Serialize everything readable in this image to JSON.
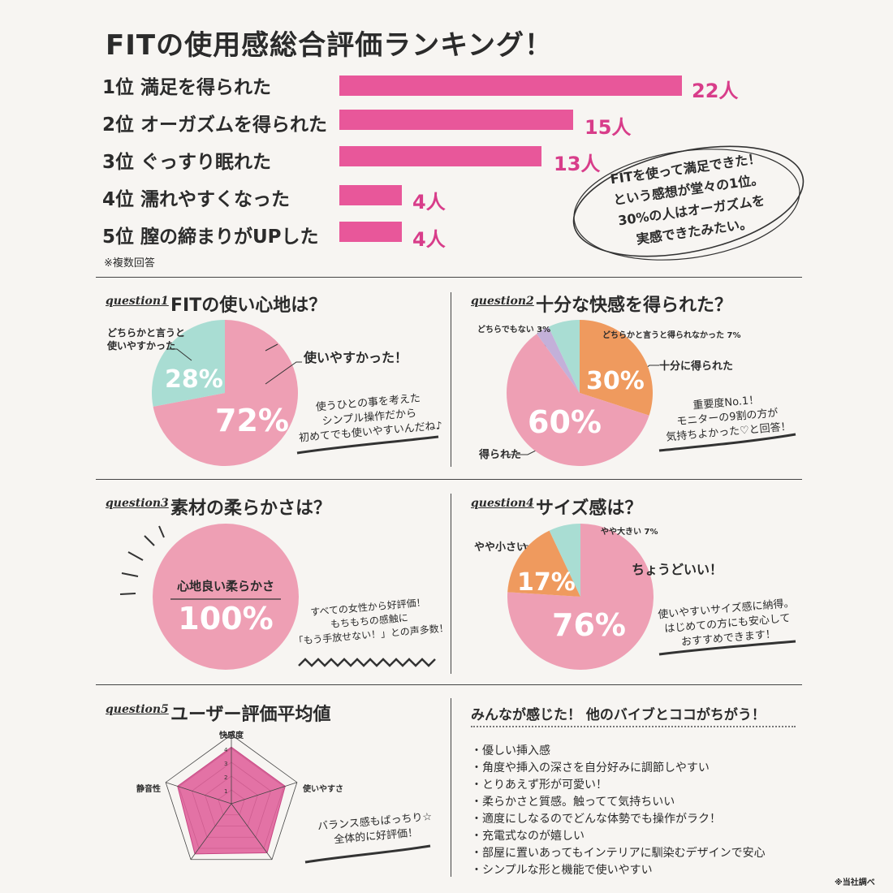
{
  "title": "FITの使用感総合評価ランキング！",
  "ranking": {
    "footnote": "※複数回答",
    "items": [
      {
        "label": "1位 満足を得られた",
        "count": "22人"
      },
      {
        "label": "2位 オーガズムを得られた",
        "count": "15人"
      },
      {
        "label": "3位 ぐっすり眠れた",
        "count": "13人"
      },
      {
        "label": "4位 濡れやすくなった",
        "count": "4人"
      },
      {
        "label": "5位 膣の締まりがUPした",
        "count": "4人"
      }
    ],
    "bubble": [
      "FITを使って満足できた！",
      "という感想が堂々の1位。",
      "30%の人はオーガズムを",
      "実感できたみたい。"
    ]
  },
  "q1": {
    "tag": "question1",
    "title": "FITの使い心地は？",
    "label_major": "使いやすかった！",
    "label_minor_1": "どちらかと言うと",
    "label_minor_2": "使いやすかった",
    "pct_major": "72%",
    "pct_minor": "28%",
    "comment": [
      "使うひとの事を考えた",
      "シンプル操作だから",
      "初めてでも使いやすいんだね♪"
    ]
  },
  "q2": {
    "tag": "question2",
    "title": "十分な快感を得られた？",
    "label_a": "どちらかと言うと得られなかった 7%",
    "label_b": "どちらでもない 3%",
    "label_c": "十分に得られた",
    "label_d": "得られた",
    "pct_c": "30%",
    "pct_d": "60%",
    "comment": [
      "重要度No.1！",
      "モニターの9割の方が",
      "気持ちよかった♡と回答！"
    ]
  },
  "q3": {
    "tag": "question3",
    "title": "素材の柔らかさは？",
    "label": "心地良い柔らかさ",
    "pct": "100%",
    "comment": [
      "すべての女性から好評価！",
      "もちもちの感触に",
      "「もう手放せない！」との声多数！"
    ]
  },
  "q4": {
    "tag": "question4",
    "title": "サイズ感は？",
    "label_large": "やや大きい 7%",
    "label_small": "やや小さい",
    "label_just": "ちょうどいい！",
    "pct_small": "17%",
    "pct_just": "76%",
    "comment": [
      "使いやすいサイズ感に納得。",
      "はじめての方にも安心して",
      "おすすめできます！"
    ]
  },
  "q5": {
    "tag": "question5",
    "title": "ユーザー評価平均値",
    "axes": [
      "快感度",
      "使いやすさ",
      "静音性"
    ],
    "scale": [
      "1",
      "2",
      "3",
      "4",
      "5"
    ],
    "comment": [
      "バランス感もばっちり☆",
      "全体的に好評価！"
    ]
  },
  "features": {
    "title": "みんなが感じた！ 他のバイブとココがちがう！",
    "items": [
      "・優しい挿入感",
      "・角度や挿入の深さを自分好みに調節しやすい",
      "・とりあえず形が可愛い！",
      "・柔らかさと質感。触ってて気持ちいい",
      "・適度にしなるのでどんな体勢でも操作がラク！",
      "・充電式なのが嬉しい",
      "・部屋に置いあってもインテリアに馴染むデザインで安心",
      "・シンプルな形と機能で使いやすい"
    ]
  },
  "source": "※当社調べ",
  "colors": {
    "pink_bar": "#e8579a",
    "pie_pink": "#ee9fb4",
    "mint": "#a9ddd3",
    "orange": "#ef9a5e",
    "lavender": "#c3b0d9",
    "radar_fill": "#e0609a"
  },
  "chart_data": [
    {
      "type": "bar",
      "title": "FITの使用感総合評価ランキング！",
      "categories": [
        "満足を得られた",
        "オーガズムを得られた",
        "ぐっすり眠れた",
        "濡れやすくなった",
        "膣の締まりがUPした"
      ],
      "values": [
        22,
        15,
        13,
        4,
        4
      ],
      "unit": "人"
    },
    {
      "type": "pie",
      "title": "FITの使い心地は？",
      "labels": [
        "使いやすかった！",
        "どちらかと言うと使いやすかった"
      ],
      "values": [
        72,
        28
      ]
    },
    {
      "type": "pie",
      "title": "十分な快感を得られた？",
      "labels": [
        "十分に得られた",
        "得られた",
        "どちらでもない",
        "どちらかと言うと得られなかった"
      ],
      "values": [
        30,
        60,
        3,
        7
      ]
    },
    {
      "type": "pie",
      "title": "素材の柔らかさは？",
      "labels": [
        "心地良い柔らかさ"
      ],
      "values": [
        100
      ]
    },
    {
      "type": "pie",
      "title": "サイズ感は？",
      "labels": [
        "ちょうどいい！",
        "やや小さい",
        "やや大きい"
      ],
      "values": [
        76,
        17,
        7
      ]
    },
    {
      "type": "radar",
      "title": "ユーザー評価平均値",
      "axes": [
        "快感度",
        "使いやすさ",
        "",
        "",
        "静音性"
      ],
      "values": [
        4.1,
        4.1,
        4.4,
        4.5,
        4.1
      ],
      "range": [
        0,
        5
      ]
    }
  ]
}
